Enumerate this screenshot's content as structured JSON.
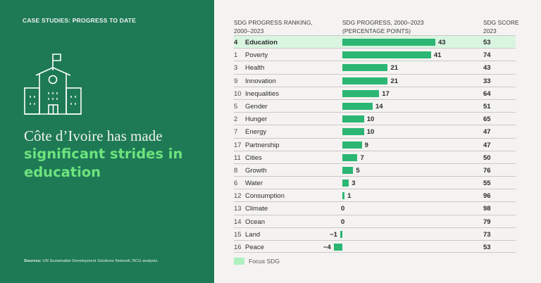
{
  "left_panel": {
    "eyebrow": "CASE STUDIES: PROGRESS TO DATE",
    "icon": "school-building-icon",
    "headline_part1": "Côte d’Ivoire has made",
    "headline_part2": "significant strides in education",
    "sources_label": "Sources:",
    "sources_text": " UN Sustainable Development Solutions Network; BCG analysis."
  },
  "colors": {
    "panel_green": "#1d7a55",
    "highlight_text": "#6ee37e",
    "bar_green": "#2bb673",
    "focus_row_bg": "#d9f5e0",
    "legend_swatch": "#aef0be",
    "background": "#f4f3f1"
  },
  "headers": {
    "rank": [
      "SDG PROGRESS RANKING,",
      "2000–2023"
    ],
    "progress": [
      "SDG PROGRESS, 2000–2023",
      "(PERCENTAGE POINTS)"
    ],
    "score": [
      "SDG SCORE",
      "2023"
    ]
  },
  "legend": {
    "label": "Focus SDG"
  },
  "chart_data": {
    "type": "bar",
    "orientation": "horizontal",
    "title": "SDG PROGRESS, 2000–2023 (PERCENTAGE POINTS)",
    "categories": [
      "Education",
      "Poverty",
      "Health",
      "Innovation",
      "Inequalities",
      "Gender",
      "Hunger",
      "Energy",
      "Partnership",
      "Cities",
      "Growth",
      "Water",
      "Consumption",
      "Climate",
      "Ocean",
      "Land",
      "Peace"
    ],
    "ranks": [
      4,
      1,
      3,
      9,
      10,
      5,
      2,
      7,
      17,
      11,
      8,
      6,
      12,
      13,
      14,
      15,
      16
    ],
    "values": [
      43,
      41,
      21,
      21,
      17,
      14,
      10,
      10,
      9,
      7,
      5,
      3,
      1,
      0,
      0,
      -1,
      -4
    ],
    "value_labels": [
      "43",
      "41",
      "21",
      "21",
      "17",
      "14",
      "10",
      "10",
      "9",
      "7",
      "5",
      "3",
      "1",
      "0",
      "0",
      "−1",
      "−4"
    ],
    "scores_2023": [
      53,
      74,
      43,
      33,
      64,
      51,
      65,
      47,
      47,
      50,
      76,
      55,
      96,
      98,
      79,
      73,
      53
    ],
    "focus": [
      "Education"
    ],
    "xlim": [
      -4,
      43
    ],
    "legend": [
      "Focus SDG"
    ],
    "legend_position": "bottom-left",
    "grid": false
  }
}
